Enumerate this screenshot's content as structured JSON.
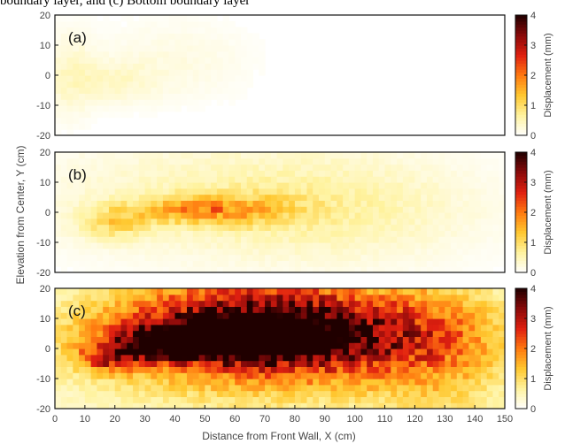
{
  "caption": "boundary layer, and (c) Bottom boundary layer",
  "chart_data": {
    "type": "heatmap",
    "xlabel": "Distance from Front Wall, X (cm)",
    "ylabel": "Elevation from Center, Y (cm)",
    "xlim": [
      0,
      150
    ],
    "ylim": [
      -20,
      20
    ],
    "xticks": [
      "0",
      "10",
      "20",
      "30",
      "40",
      "50",
      "60",
      "70",
      "80",
      "90",
      "100",
      "110",
      "120",
      "130",
      "140",
      "150"
    ],
    "yticks": [
      "-20",
      "-10",
      "0",
      "10",
      "20"
    ],
    "colorbar": {
      "label": "Displacement (mm)",
      "range": [
        0,
        4
      ],
      "ticks": [
        "0",
        "1",
        "2",
        "3",
        "4"
      ],
      "colors": [
        "#ffffff",
        "#fff3a0",
        "#ffc830",
        "#ff7a10",
        "#e02010",
        "#8a0a0a",
        "#200000"
      ]
    },
    "panels": [
      {
        "label": "(a)",
        "description_peak_mm": 0.4,
        "hotspots": [
          {
            "x": 5,
            "y": 0,
            "sx": 6,
            "sy": 10,
            "v": 0.35
          },
          {
            "x": 20,
            "y": -2,
            "sx": 10,
            "sy": 5,
            "v": 0.3
          },
          {
            "x": 40,
            "y": 5,
            "sx": 18,
            "sy": 10,
            "v": 0.2
          }
        ]
      },
      {
        "label": "(b)",
        "description_peak_mm": 1.4,
        "hotspots": [
          {
            "x": 45,
            "y": 1,
            "sx": 12,
            "sy": 3,
            "v": 1.2
          },
          {
            "x": 20,
            "y": -3,
            "sx": 8,
            "sy": 4,
            "v": 0.9
          },
          {
            "x": 65,
            "y": 1,
            "sx": 14,
            "sy": 4,
            "v": 0.7
          },
          {
            "x": 60,
            "y": 5,
            "sx": 45,
            "sy": 14,
            "v": 0.5
          },
          {
            "x": 100,
            "y": 0,
            "sx": 30,
            "sy": 12,
            "v": 0.3
          }
        ]
      },
      {
        "label": "(c)",
        "description_peak_mm": 3.8,
        "hotspots": [
          {
            "x": 58,
            "y": 3,
            "sx": 22,
            "sy": 3.5,
            "v": 3.6
          },
          {
            "x": 45,
            "y": 2,
            "sx": 10,
            "sy": 3,
            "v": 3.2
          },
          {
            "x": 60,
            "y": 8,
            "sx": 30,
            "sy": 10,
            "v": 2.3
          },
          {
            "x": 90,
            "y": 5,
            "sx": 30,
            "sy": 10,
            "v": 1.9
          },
          {
            "x": 20,
            "y": -3,
            "sx": 8,
            "sy": 3,
            "v": 2.0
          },
          {
            "x": 70,
            "y": 0,
            "sx": 60,
            "sy": 18,
            "v": 1.2
          },
          {
            "x": 130,
            "y": 0,
            "sx": 15,
            "sy": 20,
            "v": 0.8
          }
        ]
      }
    ]
  }
}
